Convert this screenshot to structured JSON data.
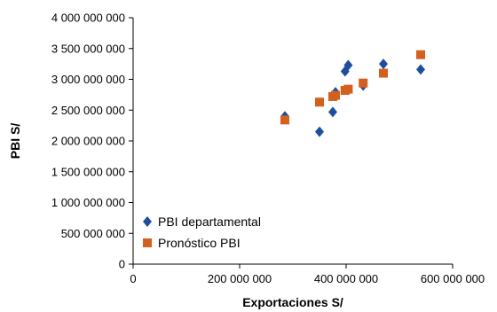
{
  "chart_data": {
    "type": "scatter",
    "title": "",
    "xlabel": "Exportaciones S/",
    "ylabel": "PBI S/",
    "xlim": [
      0,
      600000000
    ],
    "ylim": [
      0,
      4000000000
    ],
    "x_ticks": [
      0,
      200000000,
      400000000,
      600000000
    ],
    "x_tick_labels": [
      "0",
      "200 000 000",
      "400 000 000",
      "600 000 000"
    ],
    "y_ticks": [
      0,
      500000000,
      1000000000,
      1500000000,
      2000000000,
      2500000000,
      3000000000,
      3500000000,
      4000000000
    ],
    "y_tick_labels": [
      "0",
      "500 000 000",
      "1 000 000 000",
      "1 500 000 000",
      "2 000 000 000",
      "2 500 000 000",
      "3 000 000 000",
      "3 500 000 000",
      "4 000 000 000"
    ],
    "grid": false,
    "legend_position": "bottom-left",
    "series": [
      {
        "name": "PBI departamental",
        "marker": "diamond",
        "color": "#1F4E9C",
        "points": [
          {
            "x": 285000000,
            "y": 2400000000
          },
          {
            "x": 350000000,
            "y": 2150000000
          },
          {
            "x": 375000000,
            "y": 2470000000
          },
          {
            "x": 380000000,
            "y": 2790000000
          },
          {
            "x": 398000000,
            "y": 3130000000
          },
          {
            "x": 404000000,
            "y": 3230000000
          },
          {
            "x": 432000000,
            "y": 2900000000
          },
          {
            "x": 470000000,
            "y": 3250000000
          },
          {
            "x": 540000000,
            "y": 3160000000
          }
        ]
      },
      {
        "name": "Pronóstico PBI",
        "marker": "square",
        "color": "#D4601E",
        "points": [
          {
            "x": 285000000,
            "y": 2340000000
          },
          {
            "x": 350000000,
            "y": 2630000000
          },
          {
            "x": 375000000,
            "y": 2720000000
          },
          {
            "x": 380000000,
            "y": 2740000000
          },
          {
            "x": 398000000,
            "y": 2820000000
          },
          {
            "x": 404000000,
            "y": 2840000000
          },
          {
            "x": 432000000,
            "y": 2940000000
          },
          {
            "x": 470000000,
            "y": 3100000000
          },
          {
            "x": 540000000,
            "y": 3400000000
          }
        ]
      }
    ]
  }
}
